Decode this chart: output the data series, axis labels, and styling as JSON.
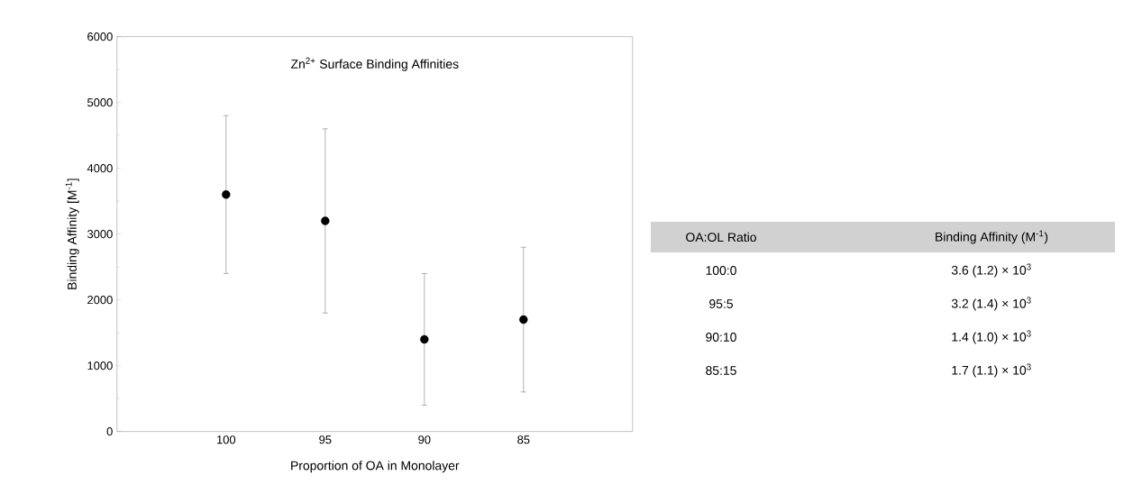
{
  "chart_data": [
    {
      "type": "scatter",
      "title": "Zn$^{2+}$ Surface Binding Affinities",
      "xlabel": "Proportion of OA in Monolayer",
      "ylabel": "Binding Affinity [M$^{-1}$]",
      "categories": [
        "100",
        "95",
        "90",
        "85"
      ],
      "values": [
        3600,
        3200,
        1400,
        1700
      ],
      "errors": [
        1200,
        1400,
        1000,
        1100
      ],
      "color": "#000000",
      "marker": "circle",
      "ylim": [
        0,
        6000
      ],
      "yticks": [
        0,
        1000,
        2000,
        3000,
        4000,
        5000,
        6000
      ]
    },
    {
      "type": "other",
      "annotations": [
        "OA:OL Ratio",
        "Binding Affinity (M$^{-1}$)",
        "100:0",
        "3.6 (1.2) × 10$^{3}$",
        "95:5",
        "3.2 (1.4) × 10$^{3}$",
        "90:10",
        "1.4 (1.0) × 10$^{3}$",
        "85:15",
        "1.7 (1.1) × 10$^{3}$"
      ]
    }
  ]
}
